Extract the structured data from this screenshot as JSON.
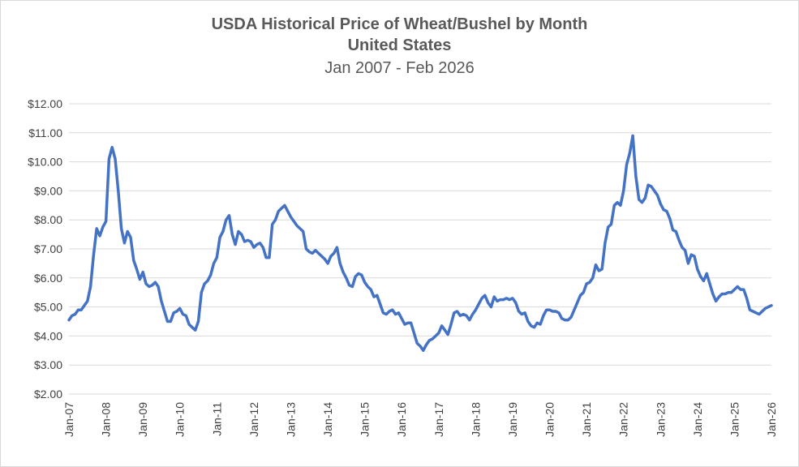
{
  "chart_data": {
    "type": "line",
    "title": "USDA Historical Price of Wheat/Bushel by Month",
    "subtitle": "United States",
    "subtitle2": "Jan 2007 - Feb 2026",
    "xlabel": "",
    "ylabel": "",
    "ylim": [
      2,
      12
    ],
    "y_ticks": [
      "$2.00",
      "$3.00",
      "$4.00",
      "$5.00",
      "$6.00",
      "$7.00",
      "$8.00",
      "$9.00",
      "$10.00",
      "$11.00",
      "$12.00"
    ],
    "x_ticks": [
      "Jan-07",
      "Jan-08",
      "Jan-09",
      "Jan-10",
      "Jan-11",
      "Jan-12",
      "Jan-13",
      "Jan-14",
      "Jan-15",
      "Jan-16",
      "Jan-17",
      "Jan-18",
      "Jan-19",
      "Jan-20",
      "Jan-21",
      "Jan-22",
      "Jan-23",
      "Jan-24",
      "Jan-25",
      "Jan-26"
    ],
    "grid": true,
    "legend": "none",
    "line_color": "#4472c4",
    "series": [
      {
        "start": "2007-01",
        "values": [
          4.55,
          4.7,
          4.75,
          4.9,
          4.9,
          5.05,
          5.2,
          5.7,
          6.8,
          7.7,
          7.45,
          7.75,
          7.95,
          10.1,
          10.5,
          10.1,
          9.0,
          7.7,
          7.2,
          7.6,
          7.4,
          6.6,
          6.3,
          5.95,
          6.2,
          5.8,
          5.7,
          5.75,
          5.85,
          5.7,
          5.2,
          4.85,
          4.5,
          4.5,
          4.8,
          4.85,
          4.95,
          4.75,
          4.7,
          4.4,
          4.3,
          4.2,
          4.5,
          5.5,
          5.8,
          5.9,
          6.1,
          6.5,
          6.7,
          7.4,
          7.6,
          8.0,
          8.15,
          7.5,
          7.15,
          7.6,
          7.5,
          7.25,
          7.3,
          7.25,
          7.05,
          7.15,
          7.2,
          7.05,
          6.7,
          6.7,
          7.85,
          8.0,
          8.3,
          8.4,
          8.5,
          8.3,
          8.1,
          7.95,
          7.8,
          7.7,
          7.6,
          7.0,
          6.9,
          6.85,
          6.95,
          6.85,
          6.75,
          6.65,
          6.5,
          6.75,
          6.85,
          7.05,
          6.5,
          6.2,
          6.0,
          5.75,
          5.7,
          6.05,
          6.15,
          6.1,
          5.85,
          5.7,
          5.6,
          5.35,
          5.4,
          5.1,
          4.8,
          4.75,
          4.85,
          4.9,
          4.75,
          4.8,
          4.6,
          4.4,
          4.45,
          4.45,
          4.1,
          3.75,
          3.65,
          3.5,
          3.7,
          3.85,
          3.9,
          4.0,
          4.1,
          4.35,
          4.2,
          4.05,
          4.4,
          4.8,
          4.85,
          4.7,
          4.75,
          4.7,
          4.55,
          4.75,
          4.9,
          5.1,
          5.3,
          5.4,
          5.15,
          5.0,
          5.35,
          5.2,
          5.25,
          5.25,
          5.3,
          5.25,
          5.3,
          5.15,
          4.85,
          4.75,
          4.8,
          4.5,
          4.35,
          4.3,
          4.45,
          4.4,
          4.7,
          4.9,
          4.9,
          4.85,
          4.85,
          4.8,
          4.6,
          4.55,
          4.55,
          4.65,
          4.9,
          5.15,
          5.4,
          5.5,
          5.8,
          5.85,
          6.0,
          6.45,
          6.25,
          6.3,
          7.2,
          7.75,
          7.85,
          8.5,
          8.6,
          8.5,
          9.0,
          9.9,
          10.3,
          10.9,
          9.5,
          8.7,
          8.6,
          8.75,
          9.2,
          9.15,
          9.0,
          8.85,
          8.55,
          8.35,
          8.3,
          8.05,
          7.65,
          7.6,
          7.3,
          7.05,
          6.95,
          6.5,
          6.8,
          6.75,
          6.3,
          6.05,
          5.9,
          6.15,
          5.8,
          5.45,
          5.2,
          5.35,
          5.45,
          5.45,
          5.5,
          5.5,
          5.6,
          5.7,
          5.6,
          5.6,
          5.3,
          4.9,
          4.85,
          4.8,
          4.75,
          4.85,
          4.95,
          5.0,
          5.05
        ]
      }
    ]
  }
}
